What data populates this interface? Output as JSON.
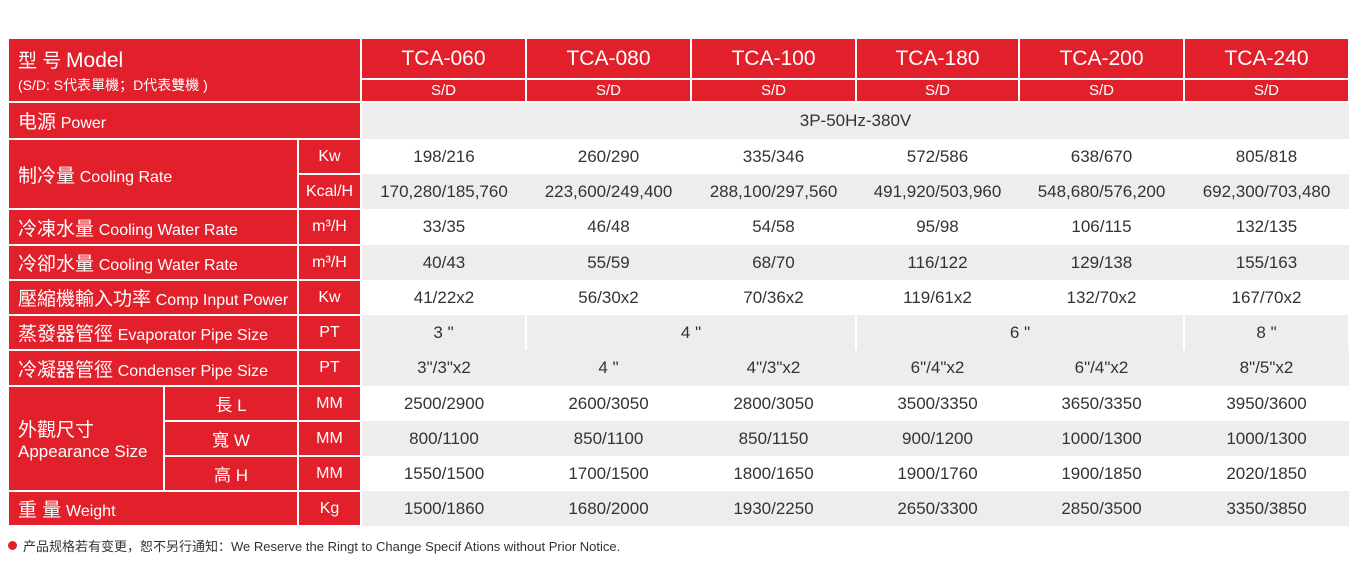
{
  "colors": {
    "accent": "#e2202b",
    "row_alt": "#ededee"
  },
  "header": {
    "title_cn": "型 号",
    "title_en": "Model",
    "note": "(S/D: S代表單機；D代表雙機 )",
    "models": [
      "TCA-060",
      "TCA-080",
      "TCA-100",
      "TCA-180",
      "TCA-200",
      "TCA-240"
    ],
    "variants": [
      "S/D",
      "S/D",
      "S/D",
      "S/D",
      "S/D",
      "S/D"
    ]
  },
  "rows": {
    "power": {
      "label_cn": "电源",
      "label_en": "Power",
      "value": "3P-50Hz-380V"
    },
    "cooling": {
      "label_cn": "制冷量",
      "label_en": "Cooling Rate",
      "kw": {
        "unit": "Kw",
        "values": [
          "198/216",
          "260/290",
          "335/346",
          "572/586",
          "638/670",
          "805/818"
        ]
      },
      "kcal": {
        "unit": "Kcal/H",
        "values": [
          "170,280/185,760",
          "223,600/249,400",
          "288,100/297,560",
          "491,920/503,960",
          "548,680/576,200",
          "692,300/703,480"
        ]
      }
    },
    "chilled_water": {
      "label_cn": "冷凍水量",
      "label_en": "Cooling Water Rate",
      "unit": "m³/H",
      "values": [
        "33/35",
        "46/48",
        "54/58",
        "95/98",
        "106/115",
        "132/135"
      ]
    },
    "cooling_water": {
      "label_cn": "冷卻水量",
      "label_en": "Cooling Water Rate",
      "unit": "m³/H",
      "values": [
        "40/43",
        "55/59",
        "68/70",
        "116/122",
        "129/138",
        "155/163"
      ]
    },
    "comp_power": {
      "label_cn": "壓縮機輸入功率",
      "label_en": "Comp Input Power",
      "unit": "Kw",
      "values": [
        "41/22x2",
        "56/30x2",
        "70/36x2",
        "119/61x2",
        "132/70x2",
        "167/70x2"
      ]
    },
    "evap_pipe": {
      "label_cn": "蒸發器管徑",
      "label_en": "Evaporator Pipe Size",
      "unit": "PT",
      "groups": [
        {
          "value": "3 \"",
          "span": 1
        },
        {
          "value": "4 \"",
          "span": 2
        },
        {
          "value": "6 \"",
          "span": 2
        },
        {
          "value": "8 \"",
          "span": 1
        }
      ]
    },
    "cond_pipe": {
      "label_cn": "冷凝器管徑",
      "label_en": "Condenser Pipe Size",
      "unit": "PT",
      "values": [
        "3\"/3\"x2",
        "4 \"",
        "4\"/3\"x2",
        "6\"/4\"x2",
        "6\"/4\"x2",
        "8\"/5\"x2"
      ]
    },
    "size": {
      "label_cn": "外觀尺寸",
      "label_en": "Appearance Size",
      "length": {
        "label": "長 L",
        "unit": "MM",
        "values": [
          "2500/2900",
          "2600/3050",
          "2800/3050",
          "3500/3350",
          "3650/3350",
          "3950/3600"
        ]
      },
      "width": {
        "label": "寬 W",
        "unit": "MM",
        "values": [
          "800/1100",
          "850/1100",
          "850/1150",
          "900/1200",
          "1000/1300",
          "1000/1300"
        ]
      },
      "height": {
        "label": "高 H",
        "unit": "MM",
        "values": [
          "1550/1500",
          "1700/1500",
          "1800/1650",
          "1900/1760",
          "1900/1850",
          "2020/1850"
        ]
      }
    },
    "weight": {
      "label_cn": "重 量",
      "label_en": "Weight",
      "unit": "Kg",
      "values": [
        "1500/1860",
        "1680/2000",
        "1930/2250",
        "2650/3300",
        "2850/3500",
        "3350/3850"
      ]
    }
  },
  "footer": {
    "notice": "产品规格若有变更，恕不另行通知：We Reserve the Ringt to Change Specif Ations without Prior Notice."
  }
}
